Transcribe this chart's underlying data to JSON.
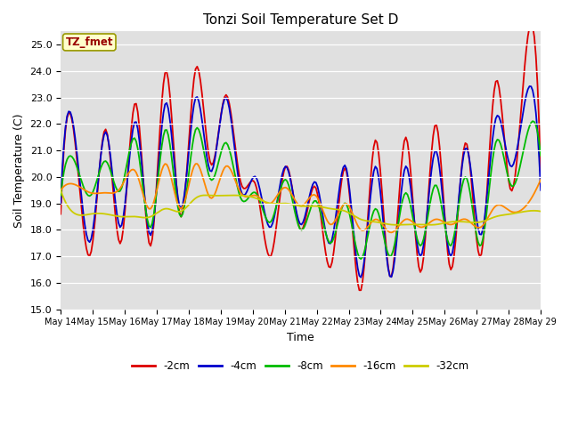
{
  "title": "Tonzi Soil Temperature Set D",
  "xlabel": "Time",
  "ylabel": "Soil Temperature (C)",
  "ylim": [
    15.0,
    25.5
  ],
  "yticks": [
    15.0,
    16.0,
    17.0,
    18.0,
    19.0,
    20.0,
    21.0,
    22.0,
    23.0,
    24.0,
    25.0
  ],
  "annotation_text": "TZ_fmet",
  "annotation_color": "#990000",
  "annotation_bg": "#ffffcc",
  "bg_color": "#e0e0e0",
  "line_colors": {
    "-2cm": "#dd0000",
    "-4cm": "#0000cc",
    "-8cm": "#00bb00",
    "-16cm": "#ff8800",
    "-32cm": "#cccc00"
  },
  "legend_labels": [
    "-2cm",
    "-4cm",
    "-8cm",
    "-16cm",
    "-32cm"
  ],
  "xtick_labels": [
    "May 14",
    "May 15",
    "May 16",
    "May 17",
    "May 18",
    "May 19",
    "May 20",
    "May 21",
    "May 22",
    "May 23",
    "May 24",
    "May 25",
    "May 26",
    "May 27",
    "May 28",
    "May 29"
  ],
  "depth2": [
    18.6,
    21.1,
    17.1,
    21.8,
    17.5,
    22.8,
    17.4,
    24.0,
    18.5,
    24.1,
    20.5,
    23.1,
    19.8,
    19.7,
    17.0,
    20.4,
    18.0,
    19.6,
    16.6,
    20.3,
    15.7,
    21.4,
    16.2,
    21.5,
    16.4,
    22.0,
    16.5,
    21.3,
    17.0,
    23.6,
    19.5,
    24.6,
    20.0
  ],
  "depth4": [
    19.0,
    21.3,
    17.6,
    21.7,
    18.1,
    22.1,
    17.8,
    22.8,
    18.8,
    23.0,
    20.2,
    23.0,
    19.5,
    20.0,
    18.1,
    20.4,
    18.2,
    19.8,
    17.5,
    20.4,
    16.2,
    20.4,
    16.2,
    20.4,
    17.0,
    21.0,
    17.0,
    21.1,
    17.8,
    22.2,
    20.4,
    23.0,
    19.5
  ],
  "depth8": [
    19.3,
    20.5,
    19.3,
    20.6,
    19.5,
    21.4,
    18.1,
    21.8,
    18.5,
    21.8,
    19.9,
    21.3,
    19.2,
    19.4,
    18.3,
    19.9,
    18.0,
    19.1,
    17.5,
    19.0,
    16.9,
    18.8,
    17.0,
    19.4,
    17.4,
    19.7,
    17.4,
    20.0,
    17.4,
    21.3,
    19.7,
    21.4,
    20.8
  ],
  "depth16": [
    19.5,
    19.7,
    19.4,
    19.4,
    19.6,
    20.2,
    18.8,
    20.5,
    18.8,
    20.5,
    19.2,
    20.4,
    19.4,
    19.3,
    19.0,
    19.6,
    18.9,
    19.3,
    18.2,
    19.0,
    18.0,
    18.4,
    17.9,
    18.4,
    18.1,
    18.4,
    18.2,
    18.4,
    18.1,
    18.9,
    18.7,
    18.9,
    19.9
  ],
  "depth32": [
    19.5,
    18.6,
    18.6,
    18.6,
    18.5,
    18.5,
    18.5,
    18.8,
    18.7,
    19.2,
    19.3,
    19.3,
    19.3,
    19.2,
    19.0,
    19.0,
    18.9,
    18.9,
    18.8,
    18.7,
    18.4,
    18.3,
    18.2,
    18.2,
    18.2,
    18.2,
    18.3,
    18.3,
    18.3,
    18.5,
    18.6,
    18.7,
    18.7
  ]
}
